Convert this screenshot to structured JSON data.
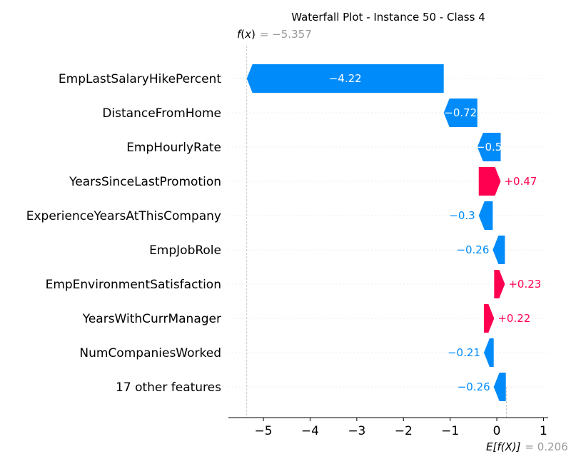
{
  "chart_data": {
    "type": "bar",
    "subtype": "shap-waterfall",
    "title": "Waterfall Plot - Instance 50 - Class 4",
    "fx": {
      "label_fn": "f",
      "label_arg": "x",
      "value": -5.357,
      "value_text": "= −5.357"
    },
    "base": {
      "label": "E[f(X)]",
      "value": 0.206,
      "value_text": "= 0.206"
    },
    "xlim": [
      -5.75,
      1.1
    ],
    "xticks": [
      -5,
      -4,
      -3,
      -2,
      -1,
      0,
      1
    ],
    "xtick_labels": [
      "−5",
      "−4",
      "−3",
      "−2",
      "−1",
      "0",
      "1"
    ],
    "features": [
      {
        "name": "EmpLastSalaryHikePercent",
        "value": -4.22,
        "label": "−4.22",
        "label_pos": "inside"
      },
      {
        "name": "DistanceFromHome",
        "value": -0.72,
        "label": "−0.72",
        "label_pos": "inside"
      },
      {
        "name": "EmpHourlyRate",
        "value": -0.5,
        "label": "−0.5",
        "label_pos": "inside"
      },
      {
        "name": "YearsSinceLastPromotion",
        "value": 0.47,
        "label": "+0.47",
        "label_pos": "outside"
      },
      {
        "name": "ExperienceYearsAtThisCompany",
        "value": -0.3,
        "label": "−0.3",
        "label_pos": "outside"
      },
      {
        "name": "EmpJobRole",
        "value": -0.26,
        "label": "−0.26",
        "label_pos": "outside"
      },
      {
        "name": "EmpEnvironmentSatisfaction",
        "value": 0.23,
        "label": "+0.23",
        "label_pos": "outside"
      },
      {
        "name": "YearsWithCurrManager",
        "value": 0.22,
        "label": "+0.22",
        "label_pos": "outside"
      },
      {
        "name": "NumCompaniesWorked",
        "value": -0.21,
        "label": "−0.21",
        "label_pos": "outside"
      },
      {
        "name": "17 other features",
        "value": -0.26,
        "label": "−0.26",
        "label_pos": "outside"
      }
    ],
    "colors": {
      "positive": "#ff0051",
      "negative": "#008bfb",
      "label_muted": "#999999"
    }
  }
}
